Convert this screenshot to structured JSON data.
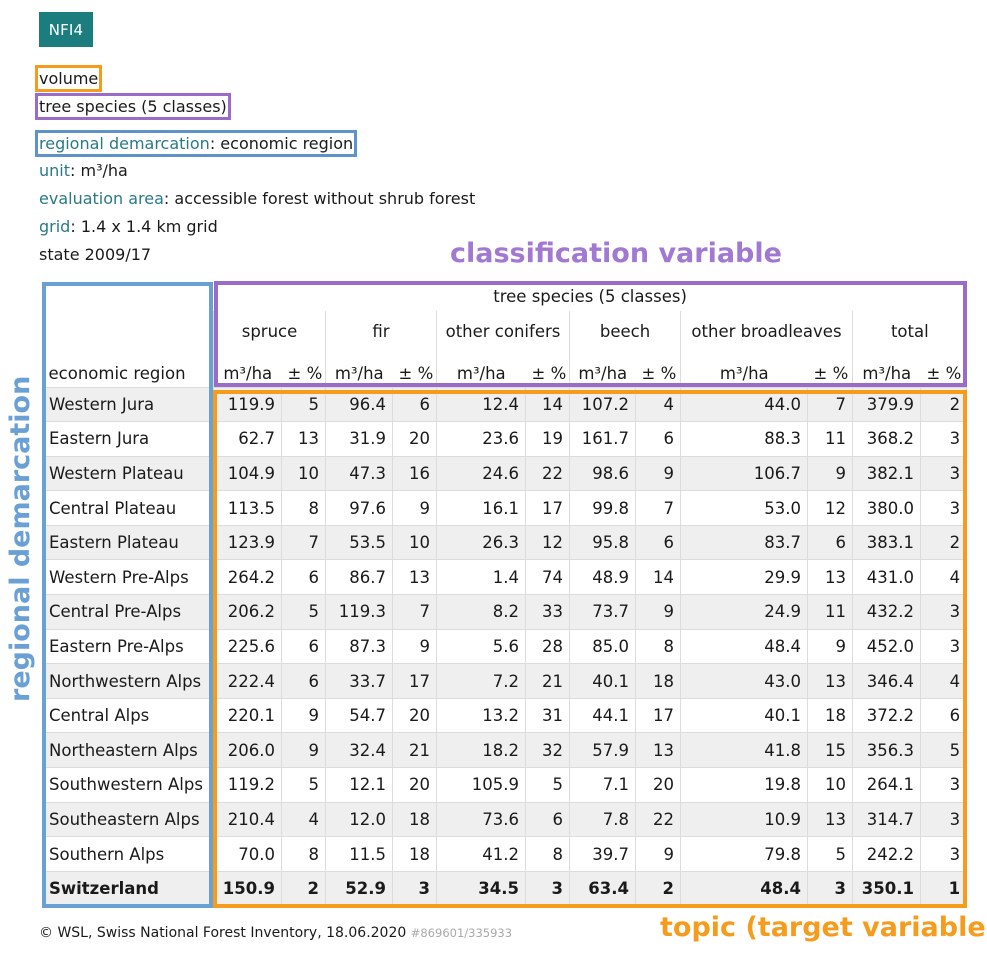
{
  "badge": "NFI4",
  "meta": {
    "topic": "volume",
    "classification": "tree species (5 classes)",
    "region_key": "regional demarcation",
    "region_val": "economic region",
    "unit_key": "unit",
    "unit_val": "m³/ha",
    "area_key": "evaluation area",
    "area_val": "accessible forest without shrub forest",
    "grid_key": "grid",
    "grid_val": "1.4 x 1.4 km grid",
    "state": "state 2009/17"
  },
  "labels": {
    "classification_variable": "classification variable",
    "regional_demarcation": "regional demarcation",
    "topic_target": "topic (target variable)"
  },
  "table": {
    "super_header": "tree species (5 classes)",
    "region_header": "economic region",
    "groups": [
      "spruce",
      "fir",
      "other conifers",
      "beech",
      "other broadleaves",
      "total"
    ],
    "unit": "m³/ha",
    "err": "± %",
    "rows": [
      [
        "Western Jura",
        "119.9",
        "5",
        "96.4",
        "6",
        "12.4",
        "14",
        "107.2",
        "4",
        "44.0",
        "7",
        "379.9",
        "2"
      ],
      [
        "Eastern Jura",
        "62.7",
        "13",
        "31.9",
        "20",
        "23.6",
        "19",
        "161.7",
        "6",
        "88.3",
        "11",
        "368.2",
        "3"
      ],
      [
        "Western Plateau",
        "104.9",
        "10",
        "47.3",
        "16",
        "24.6",
        "22",
        "98.6",
        "9",
        "106.7",
        "9",
        "382.1",
        "3"
      ],
      [
        "Central Plateau",
        "113.5",
        "8",
        "97.6",
        "9",
        "16.1",
        "17",
        "99.8",
        "7",
        "53.0",
        "12",
        "380.0",
        "3"
      ],
      [
        "Eastern Plateau",
        "123.9",
        "7",
        "53.5",
        "10",
        "26.3",
        "12",
        "95.8",
        "6",
        "83.7",
        "6",
        "383.1",
        "2"
      ],
      [
        "Western Pre-Alps",
        "264.2",
        "6",
        "86.7",
        "13",
        "1.4",
        "74",
        "48.9",
        "14",
        "29.9",
        "13",
        "431.0",
        "4"
      ],
      [
        "Central Pre-Alps",
        "206.2",
        "5",
        "119.3",
        "7",
        "8.2",
        "33",
        "73.7",
        "9",
        "24.9",
        "11",
        "432.2",
        "3"
      ],
      [
        "Eastern Pre-Alps",
        "225.6",
        "6",
        "87.3",
        "9",
        "5.6",
        "28",
        "85.0",
        "8",
        "48.4",
        "9",
        "452.0",
        "3"
      ],
      [
        "Northwestern Alps",
        "222.4",
        "6",
        "33.7",
        "17",
        "7.2",
        "21",
        "40.1",
        "18",
        "43.0",
        "13",
        "346.4",
        "4"
      ],
      [
        "Central Alps",
        "220.1",
        "9",
        "54.7",
        "20",
        "13.2",
        "31",
        "44.1",
        "17",
        "40.1",
        "18",
        "372.2",
        "6"
      ],
      [
        "Northeastern Alps",
        "206.0",
        "9",
        "32.4",
        "21",
        "18.2",
        "32",
        "57.9",
        "13",
        "41.8",
        "15",
        "356.3",
        "5"
      ],
      [
        "Southwestern Alps",
        "119.2",
        "5",
        "12.1",
        "20",
        "105.9",
        "5",
        "7.1",
        "20",
        "19.8",
        "10",
        "264.1",
        "3"
      ],
      [
        "Southeastern Alps",
        "210.4",
        "4",
        "12.0",
        "18",
        "73.6",
        "6",
        "7.8",
        "22",
        "10.9",
        "13",
        "314.7",
        "3"
      ],
      [
        "Southern Alps",
        "70.0",
        "8",
        "11.5",
        "18",
        "41.2",
        "8",
        "39.7",
        "9",
        "79.8",
        "5",
        "242.2",
        "3"
      ],
      [
        "Switzerland",
        "150.9",
        "2",
        "52.9",
        "3",
        "34.5",
        "3",
        "63.4",
        "2",
        "48.4",
        "3",
        "350.1",
        "1"
      ]
    ]
  },
  "footer": {
    "copyright": "© WSL, Swiss National Forest Inventory, 18.06.2020",
    "code": "#869601/335933"
  }
}
